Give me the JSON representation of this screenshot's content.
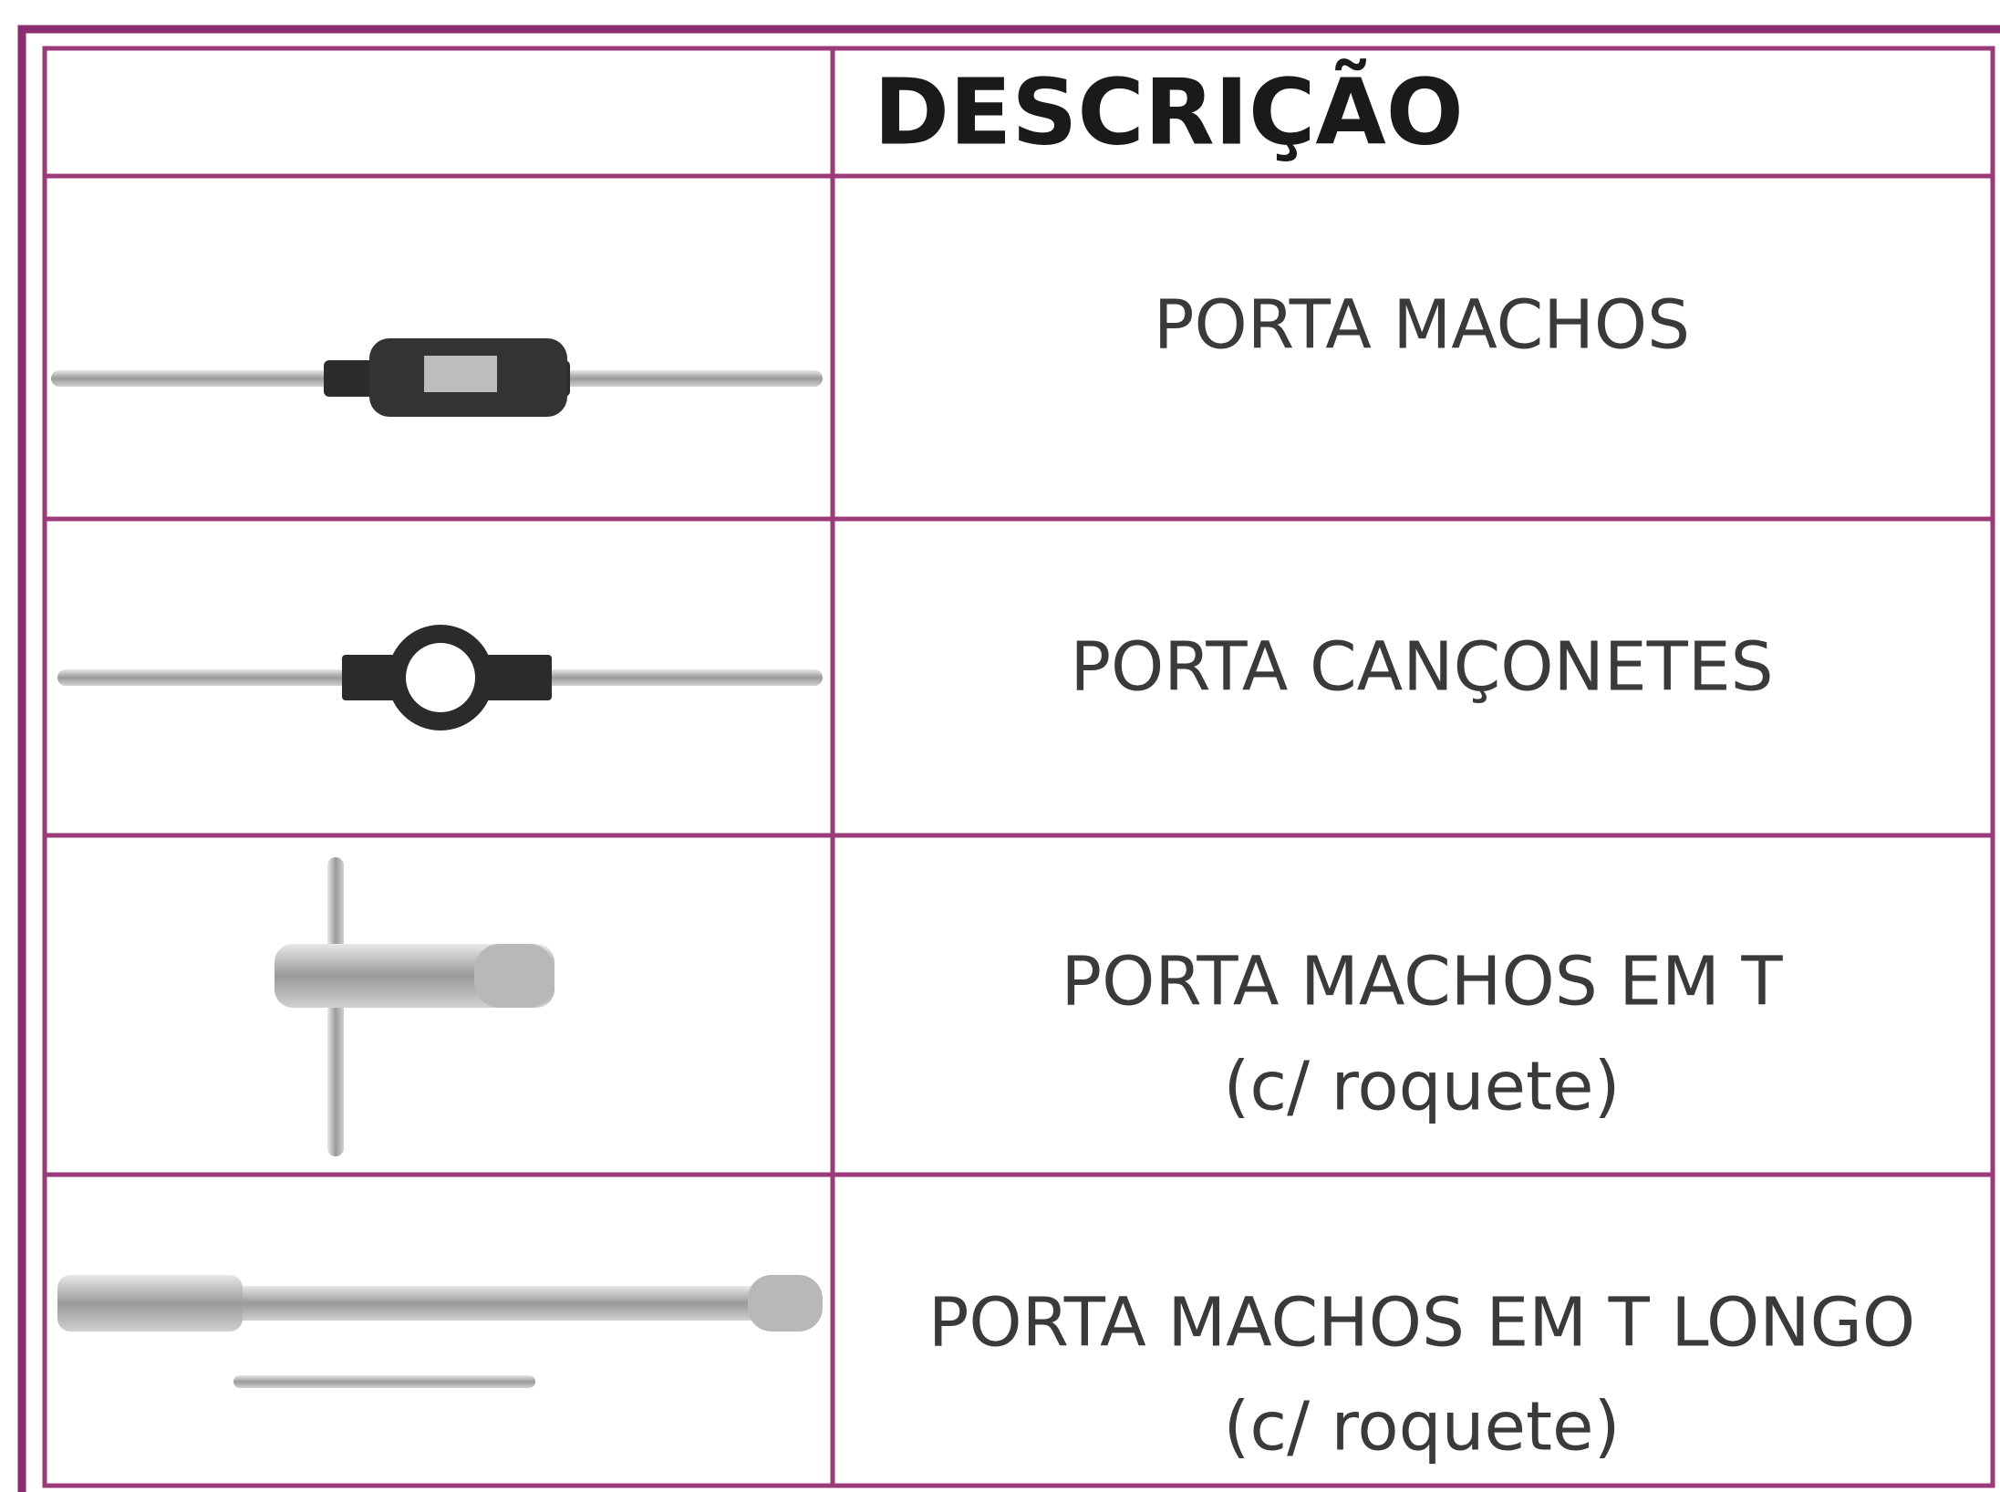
{
  "table": {
    "header": {
      "title": "DESCRIÇÃO"
    },
    "rows": [
      {
        "description": [
          "PORTA MACHOS"
        ]
      },
      {
        "description": [
          "PORTA CANÇONETES"
        ]
      },
      {
        "description": [
          "PORTA MACHOS EM T",
          "(c/ roquete)"
        ]
      },
      {
        "description": [
          "PORTA MACHOS EM T LONGO",
          "(c/ roquete)"
        ]
      }
    ]
  }
}
